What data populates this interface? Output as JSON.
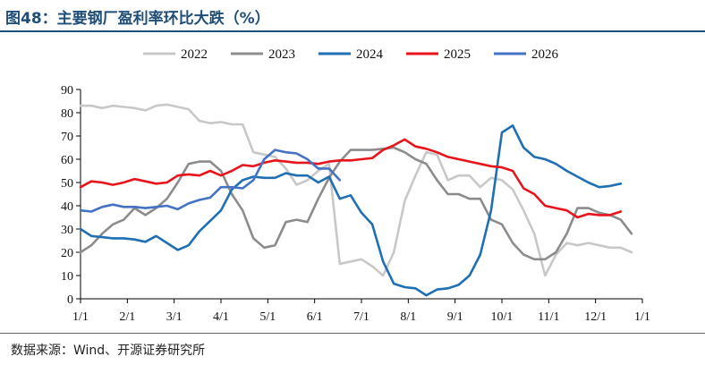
{
  "header": {
    "title": "图48：主要钢厂盈利率环比大跌（%）"
  },
  "footer": {
    "source": "数据来源：Wind、开源证券研究所"
  },
  "chart_data": {
    "type": "line",
    "title": "",
    "xlabel": "",
    "ylabel": "",
    "ylim": [
      0,
      90
    ],
    "yticks": [
      "0",
      "10",
      "20",
      "30",
      "40",
      "50",
      "60",
      "70",
      "80",
      "90"
    ],
    "x_tick_labels": [
      "1/1",
      "2/1",
      "3/1",
      "4/1",
      "5/1",
      "6/1",
      "7/1",
      "8/1",
      "9/1",
      "10/1",
      "11/1",
      "12/1",
      "1/1"
    ],
    "x_unit": "week of year (0 = 1/1, 52 = next 1/1)",
    "grid": false,
    "legend_position": "top",
    "series": [
      {
        "name": "2022",
        "color": "#c8c8c8",
        "points": [
          [
            0,
            83
          ],
          [
            1,
            83
          ],
          [
            2,
            82
          ],
          [
            3,
            83
          ],
          [
            4,
            82.5
          ],
          [
            5,
            82
          ],
          [
            6,
            81
          ],
          [
            7,
            83
          ],
          [
            8,
            83.5
          ],
          [
            9,
            82.5
          ],
          [
            10,
            81.5
          ],
          [
            11,
            76.5
          ],
          [
            12,
            75.5
          ],
          [
            13,
            76
          ],
          [
            14,
            75
          ],
          [
            15,
            75
          ],
          [
            16,
            63
          ],
          [
            17,
            62
          ],
          [
            18,
            61
          ],
          [
            19,
            56
          ],
          [
            20,
            49
          ],
          [
            21,
            51
          ],
          [
            22,
            55
          ],
          [
            23,
            58
          ],
          [
            24,
            15
          ],
          [
            25,
            16
          ],
          [
            26,
            17
          ],
          [
            27,
            14
          ],
          [
            28,
            10
          ],
          [
            29,
            20
          ],
          [
            30,
            42
          ],
          [
            31,
            53
          ],
          [
            32,
            63
          ],
          [
            33,
            62
          ],
          [
            34,
            51
          ],
          [
            35,
            53
          ],
          [
            36,
            53
          ],
          [
            37,
            48
          ],
          [
            38,
            52
          ],
          [
            39,
            51
          ],
          [
            40,
            47
          ],
          [
            41,
            38
          ],
          [
            42,
            28
          ],
          [
            43,
            10
          ],
          [
            44,
            19
          ],
          [
            45,
            24
          ],
          [
            46,
            23
          ],
          [
            47,
            24
          ],
          [
            48,
            23
          ],
          [
            49,
            22
          ],
          [
            50,
            22
          ],
          [
            51,
            20
          ]
        ]
      },
      {
        "name": "2023",
        "color": "#8c8c8c",
        "points": [
          [
            0,
            20
          ],
          [
            1,
            23
          ],
          [
            2,
            28
          ],
          [
            3,
            32
          ],
          [
            4,
            34
          ],
          [
            5,
            39
          ],
          [
            6,
            36
          ],
          [
            7,
            39
          ],
          [
            8,
            43
          ],
          [
            9,
            50
          ],
          [
            10,
            58
          ],
          [
            11,
            59
          ],
          [
            12,
            59
          ],
          [
            13,
            55
          ],
          [
            14,
            45
          ],
          [
            15,
            38
          ],
          [
            16,
            26
          ],
          [
            17,
            22
          ],
          [
            18,
            23
          ],
          [
            19,
            33
          ],
          [
            20,
            34
          ],
          [
            21,
            33
          ],
          [
            22,
            43
          ],
          [
            23,
            52
          ],
          [
            24,
            59
          ],
          [
            25,
            64
          ],
          [
            26,
            64
          ],
          [
            27,
            64
          ],
          [
            28,
            64.5
          ],
          [
            29,
            65
          ],
          [
            30,
            63
          ],
          [
            31,
            60
          ],
          [
            32,
            58
          ],
          [
            33,
            51
          ],
          [
            34,
            45
          ],
          [
            35,
            45
          ],
          [
            36,
            43
          ],
          [
            37,
            43
          ],
          [
            38,
            34
          ],
          [
            39,
            32
          ],
          [
            40,
            24
          ],
          [
            41,
            19
          ],
          [
            42,
            17
          ],
          [
            43,
            17
          ],
          [
            44,
            20
          ],
          [
            45,
            28
          ],
          [
            46,
            39
          ],
          [
            47,
            39
          ],
          [
            48,
            37
          ],
          [
            49,
            36
          ],
          [
            50,
            34
          ],
          [
            51,
            28
          ]
        ]
      },
      {
        "name": "2024",
        "color": "#1f6fb4",
        "points": [
          [
            0,
            30
          ],
          [
            1,
            27
          ],
          [
            2,
            26.5
          ],
          [
            3,
            26
          ],
          [
            4,
            26
          ],
          [
            5,
            25.5
          ],
          [
            6,
            24.5
          ],
          [
            7,
            27
          ],
          [
            8,
            24
          ],
          [
            9,
            21
          ],
          [
            10,
            23
          ],
          [
            11,
            29
          ],
          [
            12,
            33.5
          ],
          [
            13,
            38
          ],
          [
            14,
            47
          ],
          [
            15,
            51
          ],
          [
            16,
            52.5
          ],
          [
            17,
            52
          ],
          [
            18,
            52
          ],
          [
            19,
            54
          ],
          [
            20,
            53
          ],
          [
            21,
            53
          ],
          [
            22,
            50
          ],
          [
            23,
            52.5
          ],
          [
            24,
            43
          ],
          [
            25,
            44.5
          ],
          [
            26,
            37
          ],
          [
            27,
            32
          ],
          [
            28,
            16
          ],
          [
            29,
            6.5
          ],
          [
            30,
            5
          ],
          [
            31,
            4.5
          ],
          [
            32,
            1.5
          ],
          [
            33,
            4
          ],
          [
            34,
            4.5
          ],
          [
            35,
            6
          ],
          [
            36,
            10
          ],
          [
            37,
            19
          ],
          [
            38,
            38
          ],
          [
            39,
            71.5
          ],
          [
            40,
            74.5
          ],
          [
            41,
            65
          ],
          [
            42,
            61
          ],
          [
            43,
            60
          ],
          [
            44,
            58
          ],
          [
            45,
            55
          ],
          [
            46,
            52.5
          ],
          [
            47,
            50
          ],
          [
            48,
            48
          ],
          [
            49,
            48.5
          ],
          [
            50,
            49.5
          ]
        ]
      },
      {
        "name": "2025",
        "color": "#e8141b",
        "points": [
          [
            0,
            48
          ],
          [
            1,
            50.5
          ],
          [
            2,
            50
          ],
          [
            3,
            49
          ],
          [
            4,
            50
          ],
          [
            5,
            51.5
          ],
          [
            6,
            50.5
          ],
          [
            7,
            49.5
          ],
          [
            8,
            50
          ],
          [
            9,
            53
          ],
          [
            10,
            53.5
          ],
          [
            11,
            53
          ],
          [
            12,
            55
          ],
          [
            13,
            53
          ],
          [
            14,
            55
          ],
          [
            15,
            57.5
          ],
          [
            16,
            57
          ],
          [
            17,
            58.5
          ],
          [
            18,
            59.5
          ],
          [
            19,
            59
          ],
          [
            20,
            58.5
          ],
          [
            21,
            58.5
          ],
          [
            22,
            58
          ],
          [
            23,
            59
          ],
          [
            24,
            59.5
          ],
          [
            25,
            59.5
          ],
          [
            26,
            60
          ],
          [
            27,
            60.5
          ],
          [
            28,
            64
          ],
          [
            29,
            66
          ],
          [
            30,
            68.5
          ],
          [
            31,
            65.5
          ],
          [
            32,
            64.5
          ],
          [
            33,
            63
          ],
          [
            34,
            61
          ],
          [
            35,
            60
          ],
          [
            36,
            59
          ],
          [
            37,
            58
          ],
          [
            38,
            57
          ],
          [
            39,
            56.5
          ],
          [
            40,
            55
          ],
          [
            41,
            47.5
          ],
          [
            42,
            45
          ],
          [
            43,
            40
          ],
          [
            44,
            39
          ],
          [
            45,
            38
          ],
          [
            46,
            35
          ],
          [
            47,
            36.5
          ],
          [
            48,
            36
          ],
          [
            49,
            36
          ],
          [
            50,
            37.5
          ]
        ]
      },
      {
        "name": "2026",
        "color": "#4472c4",
        "points": [
          [
            0,
            38
          ],
          [
            1,
            37.5
          ],
          [
            2,
            39.5
          ],
          [
            3,
            40.5
          ],
          [
            4,
            39.5
          ],
          [
            5,
            39.5
          ],
          [
            6,
            39
          ],
          [
            7,
            39.5
          ],
          [
            8,
            40
          ],
          [
            9,
            38.5
          ],
          [
            10,
            41
          ],
          [
            11,
            42.5
          ],
          [
            12,
            43.5
          ],
          [
            13,
            48
          ],
          [
            14,
            48
          ],
          [
            15,
            47.5
          ],
          [
            16,
            51
          ],
          [
            17,
            60
          ],
          [
            18,
            64
          ],
          [
            19,
            63
          ],
          [
            20,
            62.5
          ],
          [
            21,
            60
          ],
          [
            22,
            56
          ],
          [
            23,
            56
          ],
          [
            24,
            51
          ]
        ]
      }
    ]
  }
}
